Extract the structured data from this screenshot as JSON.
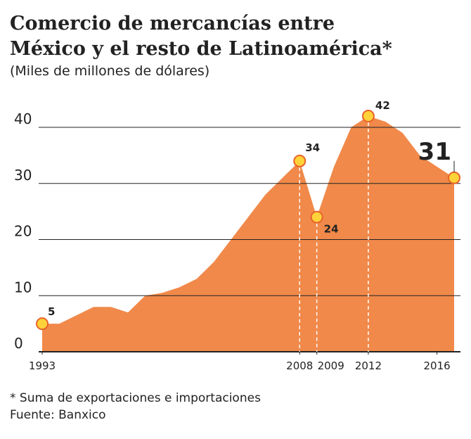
{
  "chart_data": {
    "type": "area",
    "title": [
      "Comercio de mercancías entre",
      "México y el resto de Latinoamérica*"
    ],
    "subtitle": "(Miles de millones de dólares)",
    "x": [
      1993,
      1994,
      1995,
      1996,
      1997,
      1998,
      1999,
      2000,
      2001,
      2002,
      2003,
      2004,
      2005,
      2006,
      2007,
      2008,
      2009,
      2010,
      2011,
      2012,
      2013,
      2014,
      2015,
      2016,
      2017
    ],
    "series": [
      {
        "color": "#f0894a",
        "values": [
          5,
          5,
          6.5,
          8,
          8,
          7,
          10,
          10.5,
          11.5,
          13,
          16,
          20,
          24,
          28,
          31,
          34,
          24,
          33,
          40,
          42,
          41,
          39,
          35,
          33,
          31
        ]
      }
    ],
    "highlighted": [
      0,
      15,
      16,
      19,
      24
    ],
    "xlim": [
      1993,
      2017
    ],
    "xticks": [
      1993,
      2008,
      2009,
      2012,
      2016
    ],
    "ylim": [
      0,
      40
    ],
    "yticks": [
      0,
      10,
      20,
      30,
      40
    ],
    "grid": true,
    "notes": [
      "* Suma de exportaciones e importaciones",
      "Fuente: Banxico"
    ]
  }
}
